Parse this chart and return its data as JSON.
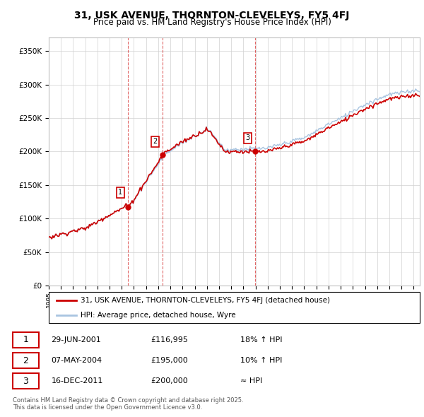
{
  "title": "31, USK AVENUE, THORNTON-CLEVELEYS, FY5 4FJ",
  "subtitle": "Price paid vs. HM Land Registry's House Price Index (HPI)",
  "legend_line1": "31, USK AVENUE, THORNTON-CLEVELEYS, FY5 4FJ (detached house)",
  "legend_line2": "HPI: Average price, detached house, Wyre",
  "sale_color": "#cc0000",
  "hpi_color": "#a8c4e0",
  "hpi_fill_color": "#ddeaf5",
  "vline_color": "#cc0000",
  "yticks": [
    0,
    50000,
    100000,
    150000,
    200000,
    250000,
    300000,
    350000
  ],
  "ytick_labels": [
    "£0",
    "£50K",
    "£100K",
    "£150K",
    "£200K",
    "£250K",
    "£300K",
    "£350K"
  ],
  "sales": [
    {
      "date": 2001.49,
      "price": 116995,
      "label": "1"
    },
    {
      "date": 2004.35,
      "price": 195000,
      "label": "2"
    },
    {
      "date": 2011.96,
      "price": 200000,
      "label": "3"
    }
  ],
  "table_rows": [
    {
      "num": "1",
      "date": "29-JUN-2001",
      "price": "£116,995",
      "change": "18% ↑ HPI"
    },
    {
      "num": "2",
      "date": "07-MAY-2004",
      "price": "£195,000",
      "change": "10% ↑ HPI"
    },
    {
      "num": "3",
      "date": "16-DEC-2011",
      "price": "£200,000",
      "change": "≈ HPI"
    }
  ],
  "footer": "Contains HM Land Registry data © Crown copyright and database right 2025.\nThis data is licensed under the Open Government Licence v3.0.",
  "xmin": 1995.0,
  "xmax": 2025.5,
  "ymin": 0,
  "ymax": 370000
}
